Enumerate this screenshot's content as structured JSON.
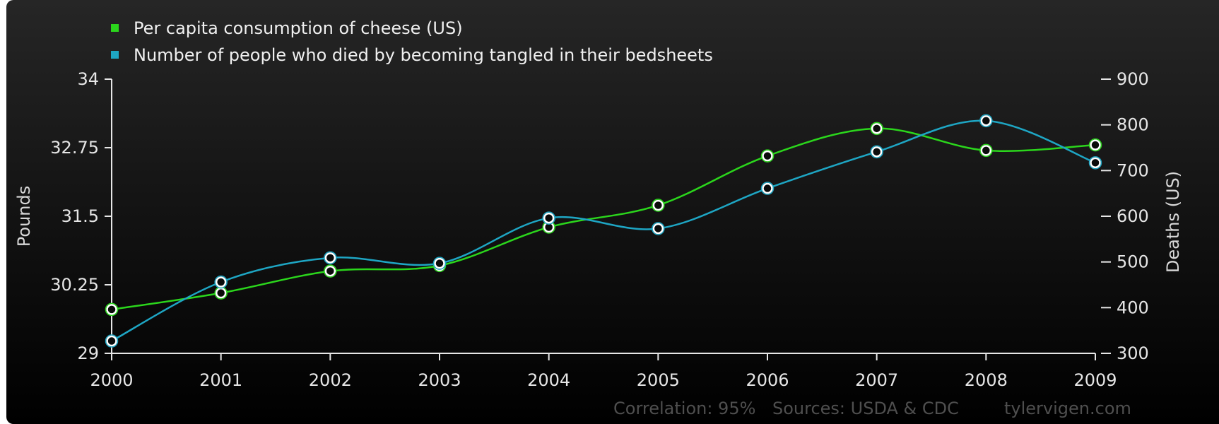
{
  "chart_data": {
    "type": "line",
    "categories": [
      "2000",
      "2001",
      "2002",
      "2003",
      "2004",
      "2005",
      "2006",
      "2007",
      "2008",
      "2009"
    ],
    "x": [
      2000,
      2001,
      2002,
      2003,
      2004,
      2005,
      2006,
      2007,
      2008,
      2009
    ],
    "series": [
      {
        "name": "Per capita consumption of cheese (US)",
        "axis": "left",
        "color": "#2bd61c",
        "values": [
          29.8,
          30.1,
          30.5,
          30.6,
          31.3,
          31.7,
          32.6,
          33.1,
          32.7,
          32.8
        ]
      },
      {
        "name": "Number of people who died by becoming tangled in their bedsheets",
        "axis": "right",
        "color": "#1ea6c4",
        "values": [
          327,
          456,
          509,
          497,
          596,
          573,
          661,
          741,
          809,
          717
        ]
      }
    ],
    "ylabel": "Pounds",
    "ylim": [
      29,
      34
    ],
    "yticks": [
      "29",
      "30.25",
      "31.5",
      "32.75",
      "34"
    ],
    "y2label": "Deaths (US)",
    "y2lim": [
      300,
      900
    ],
    "y2ticks": [
      "300",
      "400",
      "500",
      "600",
      "700",
      "800",
      "900"
    ],
    "legend_position": "top-left",
    "grid": false
  },
  "footer": {
    "correlation": "Correlation: 95%",
    "sources": "Sources: USDA & CDC",
    "site": "tylervigen.com"
  },
  "colors": {
    "background": "#111111",
    "axis": "#e6e6e6",
    "marker_fill": "#0b0b0b"
  }
}
